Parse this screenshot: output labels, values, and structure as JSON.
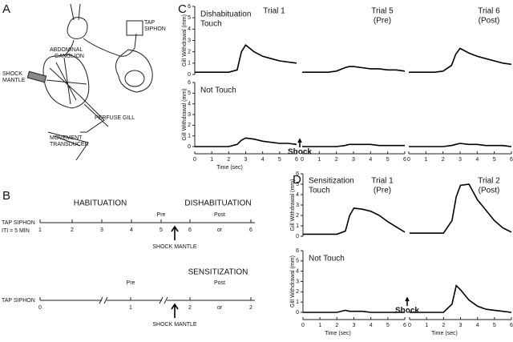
{
  "panel_a": {
    "letter": "A",
    "ganglion": [
      "ABDOMINAL",
      "GANGLION"
    ],
    "siphon": [
      "TAP",
      "SIPHON"
    ],
    "mantle": [
      "SHOCK",
      "MANTLE"
    ],
    "gill": "PERFUSE GILL",
    "transducer": [
      "MOVEMENT",
      "TRANSDUCER"
    ]
  },
  "panel_b": {
    "letter": "B",
    "habituation": {
      "title": "HABITUATION",
      "title2": "DISHABITUATION",
      "stimulus": "TAP SIPHON",
      "iti": "ITI = 5 MIN",
      "ticks": [
        "1",
        "2",
        "3",
        "4",
        "5",
        "6",
        "or",
        "6"
      ],
      "pre": "Pre",
      "post": "Post",
      "shock": "SHOCK MANTLE"
    },
    "sensitization": {
      "title": "SENSITIZATION",
      "stimulus": "TAP SIPHON",
      "ticks": [
        "0",
        "1",
        "2",
        "or",
        "2"
      ],
      "pre": "Pre",
      "post": "Post",
      "shock": "SHOCK MANTLE"
    }
  },
  "panel_c": {
    "letter": "C",
    "y_label": "Gill Withdrawal (mm)",
    "x_label": "Time (sec)",
    "shock": "Shock",
    "xlim": [
      0,
      6
    ],
    "xticks": [
      0,
      1,
      2,
      3,
      4,
      5,
      6
    ],
    "ylim": [
      0,
      6
    ],
    "yticks": [
      0,
      1,
      2,
      3,
      4,
      5,
      6
    ],
    "trials": [
      [
        "Trial 1"
      ],
      [
        "Trial 5",
        "(Pre)"
      ],
      [
        "Trial 6",
        "(Post)"
      ]
    ],
    "x": [
      0,
      0.5,
      1,
      1.5,
      2,
      2.5,
      2.75,
      3,
      3.5,
      4,
      4.5,
      5,
      5.5,
      6
    ],
    "rows": [
      {
        "label": [
          "Dishabituation",
          "Touch"
        ],
        "values": [
          [
            0.2,
            0.2,
            0.2,
            0.2,
            0.2,
            0.4,
            2.0,
            2.6,
            2.0,
            1.6,
            1.4,
            1.2,
            1.1,
            1.0
          ],
          [
            0.2,
            0.2,
            0.2,
            0.2,
            0.3,
            0.6,
            0.7,
            0.7,
            0.6,
            0.5,
            0.5,
            0.4,
            0.4,
            0.3
          ],
          [
            0.2,
            0.2,
            0.2,
            0.2,
            0.3,
            0.8,
            1.8,
            2.3,
            1.9,
            1.6,
            1.4,
            1.2,
            1.0,
            0.9
          ]
        ]
      },
      {
        "label": [
          "Not Touch"
        ],
        "values": [
          [
            0,
            0,
            0,
            0,
            0,
            0.2,
            0.6,
            0.8,
            0.7,
            0.5,
            0.4,
            0.3,
            0.3,
            0.2
          ],
          [
            0,
            0,
            0,
            0,
            0,
            0.1,
            0.2,
            0.2,
            0.2,
            0.2,
            0.1,
            0.1,
            0.1,
            0.1
          ],
          [
            0,
            0,
            0,
            0,
            0,
            0.1,
            0.2,
            0.3,
            0.2,
            0.2,
            0.1,
            0.1,
            0.1,
            0
          ]
        ]
      }
    ]
  },
  "panel_d": {
    "letter": "D",
    "y_label": "Gill Withdrawal (mm)",
    "x_label": "Time (sec)",
    "shock": "Shock",
    "xlim": [
      0,
      6
    ],
    "xticks": [
      0,
      1,
      2,
      3,
      4,
      5,
      6
    ],
    "ylim": [
      0,
      6
    ],
    "yticks": [
      0,
      1,
      2,
      3,
      4,
      5,
      6
    ],
    "trials": [
      [
        "Trial 1",
        "(Pre)"
      ],
      [
        "Trial 2",
        "(Post)"
      ]
    ],
    "x": [
      0,
      0.5,
      1,
      1.5,
      2,
      2.5,
      2.75,
      3,
      3.5,
      4,
      4.5,
      5,
      5.5,
      6
    ],
    "rows": [
      {
        "label": [
          "Sensitization",
          "Touch"
        ],
        "values": [
          [
            0.2,
            0.2,
            0.2,
            0.2,
            0.2,
            0.5,
            2.0,
            2.7,
            2.6,
            2.4,
            2.0,
            1.4,
            0.9,
            0.4
          ],
          [
            0.3,
            0.3,
            0.3,
            0.3,
            0.3,
            1.5,
            3.8,
            4.9,
            5.0,
            3.5,
            2.5,
            1.5,
            0.8,
            0.4
          ]
        ]
      },
      {
        "label": [
          "Not Touch"
        ],
        "values": [
          [
            0,
            0,
            0,
            0,
            0,
            0.2,
            0.1,
            0.1,
            0.1,
            0,
            0,
            0,
            0,
            0
          ],
          [
            0,
            0,
            0,
            0,
            0,
            0.8,
            2.6,
            2.2,
            1.2,
            0.6,
            0.3,
            0.2,
            0.1,
            0
          ]
        ]
      }
    ]
  }
}
